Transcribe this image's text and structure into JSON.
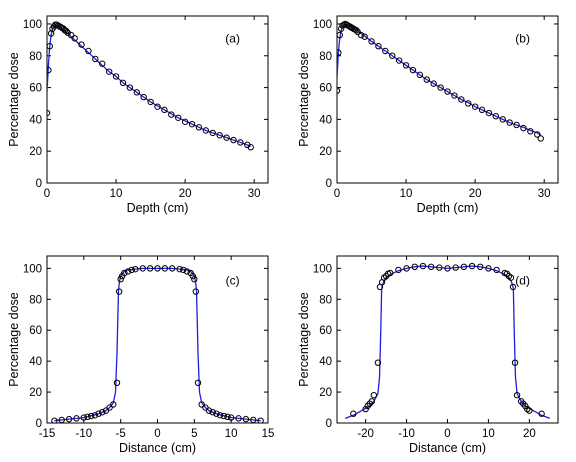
{
  "figure": {
    "chart_data": [
      {
        "type": "line",
        "panel_label": "(a)",
        "xlabel": "Depth (cm)",
        "ylabel": "Percentage dose",
        "xlim": [
          0,
          32
        ],
        "ylim": [
          0,
          105
        ],
        "xticks": [
          0,
          10,
          20,
          30
        ],
        "yticks": [
          0,
          20,
          40,
          60,
          80,
          100
        ],
        "grid": false,
        "series": [
          {
            "style": "line",
            "color": "#1f1fdc",
            "x": [
              0,
              0.2,
              0.4,
              0.6,
              0.8,
              1.0,
              1.3,
              1.6,
              2.0,
              2.5,
              3.0,
              3.5,
              4.0,
              5,
              6,
              7,
              8,
              9,
              10,
              11,
              12,
              13,
              14,
              15,
              16,
              17,
              18,
              19,
              20,
              21,
              22,
              23,
              24,
              25,
              26,
              27,
              28,
              29,
              29.5
            ],
            "y": [
              57,
              74,
              86,
              93,
              97,
              99,
              99.5,
              99,
              98,
              96,
              94,
              92,
              90,
              86,
              82,
              78,
              74,
              70,
              67,
              63,
              60,
              57,
              54,
              51,
              48.5,
              46,
              43.5,
              41,
              39,
              37,
              35,
              33,
              31.5,
              30,
              28.5,
              27,
              25.5,
              24,
              23
            ]
          },
          {
            "style": "markers",
            "marker": "circle",
            "x": [
              0,
              0.2,
              0.4,
              0.6,
              0.8,
              1.0,
              1.2,
              1.4,
              1.6,
              1.8,
              2.0,
              2.2,
              2.4,
              2.6,
              2.8,
              3.0,
              3.5,
              4,
              5,
              6,
              7,
              8,
              9,
              10,
              11,
              12,
              13,
              14,
              15,
              16,
              17,
              18,
              19,
              20,
              21,
              22,
              23,
              24,
              25,
              26,
              27,
              28,
              29,
              29.5
            ],
            "y": [
              44,
              71,
              86,
              94,
              97,
              98.5,
              99.5,
              99.5,
              99,
              98.5,
              98,
              97.5,
              97,
              96,
              95.5,
              94.5,
              93,
              91,
              87,
              83,
              78,
              75,
              70,
              67,
              63,
              60,
              57,
              54,
              51,
              48,
              46,
              43,
              41,
              38.5,
              37,
              35,
              33,
              31.5,
              30,
              28.5,
              27,
              25.5,
              24,
              22.5
            ]
          }
        ]
      },
      {
        "type": "line",
        "panel_label": "(b)",
        "xlabel": "Depth (cm)",
        "ylabel": "Percentage dose",
        "xlim": [
          0,
          32
        ],
        "ylim": [
          0,
          105
        ],
        "xticks": [
          0,
          10,
          20,
          30
        ],
        "yticks": [
          0,
          20,
          40,
          60,
          80,
          100
        ],
        "grid": false,
        "series": [
          {
            "style": "line",
            "color": "#1f1fdc",
            "x": [
              0,
              0.2,
              0.4,
              0.6,
              0.8,
              1.0,
              1.3,
              1.6,
              2.0,
              2.5,
              3.0,
              3.5,
              4.0,
              5,
              6,
              7,
              8,
              9,
              10,
              11,
              12,
              13,
              14,
              15,
              16,
              17,
              18,
              19,
              20,
              21,
              22,
              23,
              24,
              25,
              26,
              27,
              28,
              29,
              29.5
            ],
            "y": [
              66,
              82,
              91,
              96,
              98.5,
              99.5,
              99.5,
              99,
              98.5,
              97,
              95.5,
              94,
              92.5,
              89,
              86,
              83,
              80,
              77,
              74,
              71,
              68,
              65,
              62.5,
              60,
              57.5,
              55,
              52.5,
              50.5,
              48,
              46,
              44,
              42,
              40,
              38,
              36.5,
              35,
              33,
              31.5,
              30
            ]
          },
          {
            "style": "markers",
            "marker": "circle",
            "x": [
              0,
              0.2,
              0.4,
              0.6,
              0.8,
              1.0,
              1.2,
              1.4,
              1.6,
              1.8,
              2.0,
              2.2,
              2.4,
              2.6,
              2.8,
              3.0,
              3.5,
              4,
              5,
              6,
              7,
              8,
              9,
              10,
              11,
              12,
              13,
              14,
              15,
              16,
              17,
              18,
              19,
              20,
              21,
              22,
              23,
              24,
              25,
              26,
              27,
              28,
              29,
              29.5
            ],
            "y": [
              58,
              82,
              93,
              97,
              99,
              99.5,
              100,
              99.5,
              99,
              98.5,
              98,
              97.5,
              97,
              96.5,
              96,
              95,
              93,
              92,
              89,
              86,
              83,
              80,
              77,
              74,
              71,
              68,
              65,
              62.5,
              60,
              57.5,
              55,
              52.5,
              50,
              48,
              46,
              44,
              42,
              40,
              38,
              36.5,
              34.5,
              32.5,
              30.5,
              28
            ]
          }
        ]
      },
      {
        "type": "line",
        "panel_label": "(c)",
        "xlabel": "Distance (cm)",
        "ylabel": "Percentage dose",
        "xlim": [
          -15,
          15
        ],
        "ylim": [
          0,
          108
        ],
        "xticks": [
          -15,
          -10,
          -5,
          0,
          5,
          10,
          15
        ],
        "yticks": [
          0,
          20,
          40,
          60,
          80,
          100
        ],
        "grid": false,
        "series": [
          {
            "style": "line",
            "color": "#1f1fdc",
            "x": [
              -14,
              -12,
              -10,
              -8,
              -7,
              -6.5,
              -6,
              -5.7,
              -5.5,
              -5.3,
              -5.2,
              -5.1,
              -5.0,
              -4.8,
              -4.5,
              -4,
              -3,
              -2,
              -1,
              0,
              1,
              2,
              3,
              4,
              4.5,
              4.8,
              5.0,
              5.1,
              5.2,
              5.3,
              5.5,
              5.7,
              6,
              6.5,
              7,
              8,
              10,
              12,
              14
            ],
            "y": [
              1.5,
              2.5,
              3.5,
              6,
              8,
              10,
              13,
              20,
              45,
              85,
              90,
              93,
              95,
              96.5,
              98,
              99,
              99.5,
              100,
              100,
              100,
              100,
              100,
              99.5,
              99,
              98,
              96.5,
              95,
              93,
              90,
              85,
              45,
              20,
              13,
              10,
              8,
              6,
              3.5,
              2.5,
              1.5
            ]
          },
          {
            "style": "markers",
            "marker": "circle",
            "x": [
              -14,
              -13,
              -12,
              -11,
              -10,
              -9.5,
              -9,
              -8.5,
              -8,
              -7.5,
              -7,
              -6.5,
              -6,
              -5.5,
              -5.2,
              -5,
              -4.8,
              -4.5,
              -4,
              -3.5,
              -3,
              -2,
              -1,
              0,
              1,
              2,
              3,
              3.5,
              4,
              4.5,
              4.8,
              5,
              5.2,
              5.5,
              6,
              6.5,
              7,
              7.5,
              8,
              8.5,
              9,
              9.5,
              10,
              11,
              12,
              13,
              14
            ],
            "y": [
              1.5,
              2,
              2.5,
              3,
              3.5,
              4,
              4.5,
              5,
              6,
              7,
              8,
              10,
              12,
              26,
              85,
              93,
              95,
              97,
              98,
              99,
              99.5,
              100,
              100,
              100,
              100,
              100,
              99.5,
              99,
              98,
              97,
              95,
              93,
              85,
              26,
              12,
              10,
              8,
              7,
              6,
              5,
              4.5,
              4,
              3.5,
              3,
              2.5,
              2,
              1.5
            ]
          }
        ]
      },
      {
        "type": "line",
        "panel_label": "(d)",
        "xlabel": "Distance (cm)",
        "ylabel": "Percentage dose",
        "xlim": [
          -27,
          27
        ],
        "ylim": [
          0,
          108
        ],
        "xticks": [
          -20,
          -10,
          0,
          10,
          20
        ],
        "yticks": [
          0,
          20,
          40,
          60,
          80,
          100
        ],
        "grid": false,
        "series": [
          {
            "style": "line",
            "color": "#1f1fdc",
            "x": [
              -25,
              -23,
              -21,
              -19,
              -18,
              -17,
              -16.6,
              -16.3,
              -16.1,
              -16.0,
              -15.8,
              -15.5,
              -15,
              -14,
              -12,
              -10,
              -8,
              -6,
              -4,
              -2,
              0,
              2,
              4,
              6,
              8,
              10,
              12,
              14,
              15,
              15.5,
              15.8,
              16.0,
              16.1,
              16.3,
              16.6,
              17,
              18,
              19,
              21,
              23,
              25
            ],
            "y": [
              3,
              5,
              8,
              11,
              14,
              19,
              30,
              60,
              86,
              88,
              90,
              92,
              94,
              96,
              98.5,
              100,
              101,
              101.5,
              101,
              100.5,
              100,
              100.5,
              101,
              101.5,
              101,
              100,
              98.5,
              96,
              94,
              92,
              90,
              88,
              86,
              60,
              30,
              19,
              14,
              11,
              8,
              5,
              3
            ]
          },
          {
            "style": "markers",
            "marker": "circle",
            "x": [
              -23,
              -20,
              -19.5,
              -19,
              -18.5,
              -18,
              -17,
              -16.5,
              -16,
              -15.5,
              -15,
              -14.5,
              -14,
              -12,
              -10,
              -8,
              -6,
              -4,
              -2,
              0,
              2,
              4,
              6,
              8,
              10,
              12,
              14,
              14.5,
              15,
              15.5,
              16,
              16.5,
              17,
              18,
              18.5,
              19,
              19.5,
              20,
              23
            ],
            "y": [
              6,
              9,
              11,
              12.5,
              14,
              18,
              39,
              88,
              91,
              94,
              95,
              96.5,
              97,
              99,
              100,
              101,
              101.5,
              101,
              100.5,
              100,
              100.5,
              101,
              101.5,
              101,
              100,
              99,
              97,
              96.5,
              95,
              94,
              88,
              39,
              18,
              14,
              12.5,
              11,
              9,
              8,
              6
            ]
          }
        ]
      }
    ]
  }
}
